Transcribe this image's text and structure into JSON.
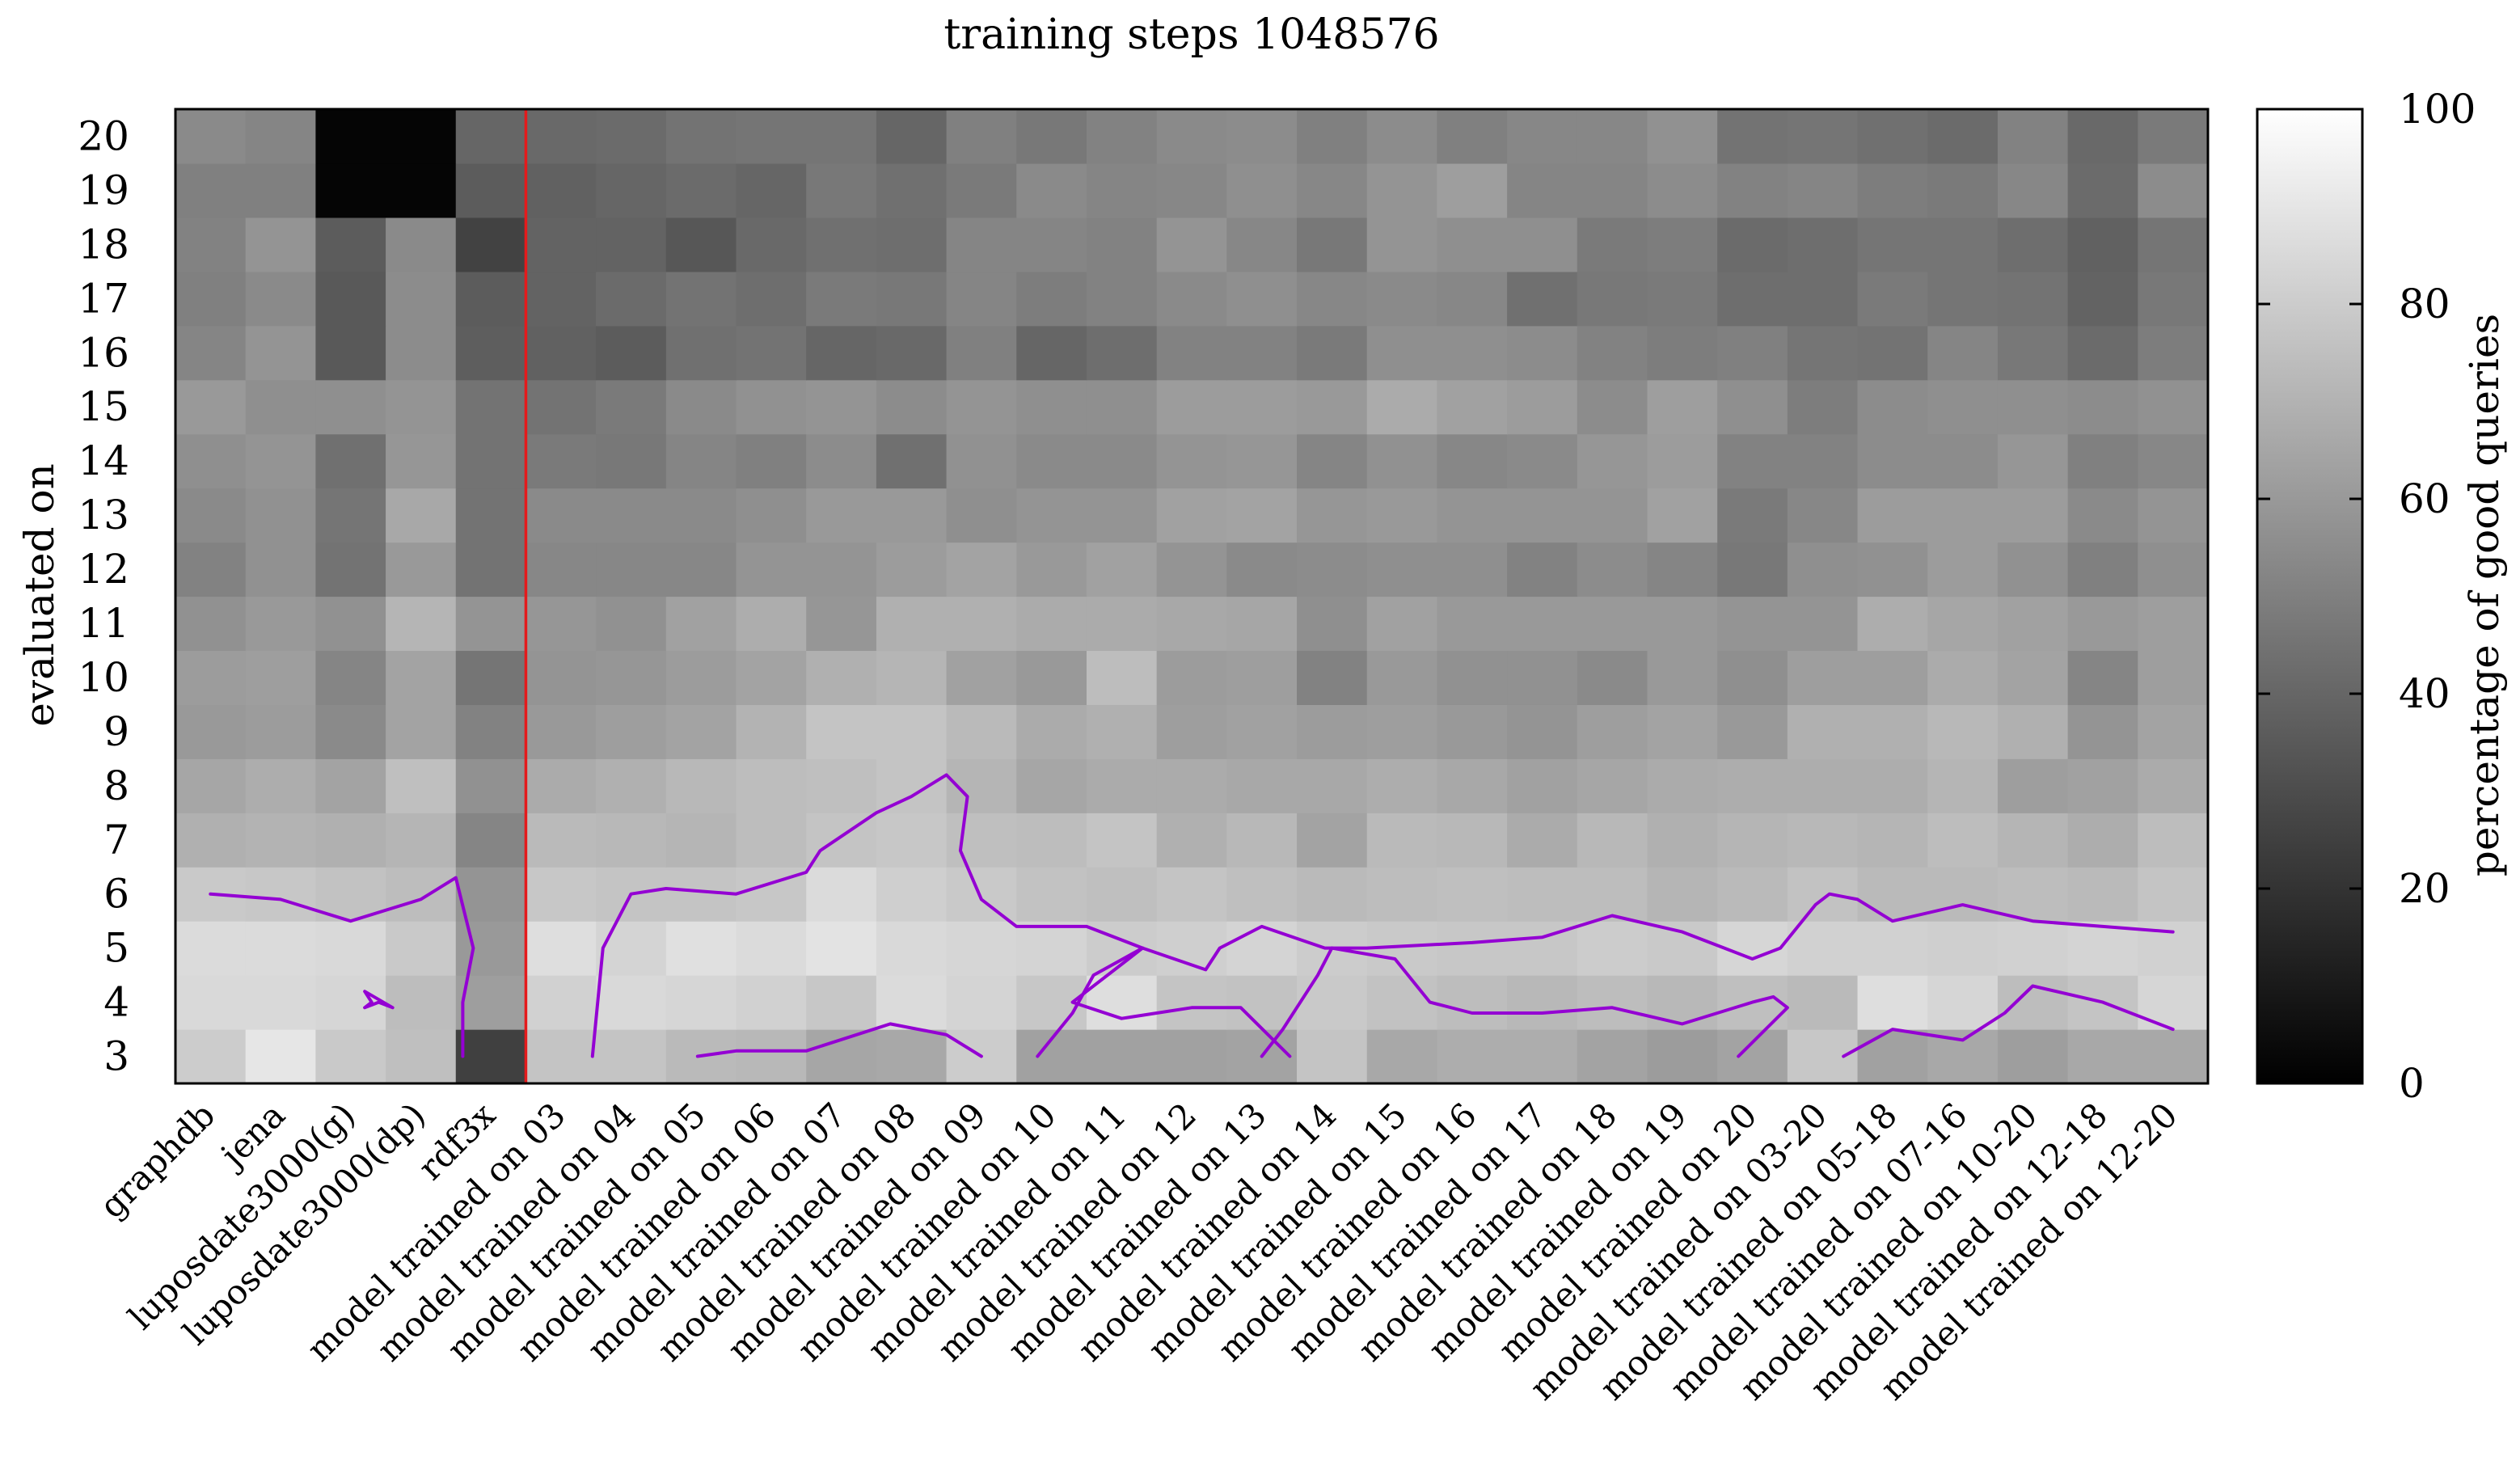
{
  "chart_data": {
    "type": "heatmap",
    "title": "training steps 1048576",
    "ylabel": "evaluated on",
    "xlabel": "",
    "colorbar": {
      "label": "percentage of good queries",
      "range": [
        0,
        100
      ],
      "ticks": [
        "0",
        "20",
        "40",
        "60",
        "80",
        "100"
      ],
      "palette": "grayscale black-to-white"
    },
    "y_categories": [
      "3",
      "4",
      "5",
      "6",
      "7",
      "8",
      "9",
      "10",
      "11",
      "12",
      "13",
      "14",
      "15",
      "16",
      "17",
      "18",
      "19",
      "20"
    ],
    "x_categories": [
      "graphdb",
      "jena",
      "luposdate3000(g)",
      "luposdate3000(dp)",
      "rdf3x",
      "model trained on 03",
      "model trained on 04",
      "model trained on 05",
      "model trained on 06",
      "model trained on 07",
      "model trained on 08",
      "model trained on 09",
      "model trained on 10",
      "model trained on 11",
      "model trained on 12",
      "model trained on 13",
      "model trained on 14",
      "model trained on 15",
      "model trained on 16",
      "model trained on 17",
      "model trained on 18",
      "model trained on 19",
      "model trained on 20",
      "model trained on 03-20",
      "model trained on 05-18",
      "model trained on 07-16",
      "model trained on 10-20",
      "model trained on 12-18",
      "model trained on 12-20"
    ],
    "values": [
      [
        80,
        90,
        79,
        75,
        25,
        77,
        77,
        73,
        72,
        65,
        66,
        80,
        63,
        63,
        63,
        64,
        77,
        66,
        68,
        68,
        64,
        61,
        64,
        78,
        63,
        66,
        62,
        66,
        66
      ],
      [
        85,
        85,
        84,
        74,
        62,
        82,
        85,
        84,
        82,
        78,
        86,
        83,
        78,
        87,
        77,
        76,
        79,
        76,
        74,
        72,
        74,
        72,
        75,
        73,
        87,
        84,
        74,
        77,
        84
      ],
      [
        86,
        86,
        85,
        79,
        60,
        87,
        83,
        88,
        86,
        89,
        85,
        84,
        83,
        80,
        81,
        83,
        80,
        79,
        78,
        78,
        80,
        79,
        84,
        82,
        82,
        81,
        82,
        83,
        82
      ],
      [
        79,
        78,
        76,
        74,
        58,
        78,
        77,
        77,
        78,
        86,
        81,
        79,
        76,
        75,
        77,
        75,
        73,
        74,
        75,
        74,
        74,
        71,
        73,
        76,
        73,
        73,
        74,
        73,
        77
      ],
      [
        69,
        70,
        69,
        71,
        52,
        73,
        72,
        71,
        74,
        77,
        78,
        75,
        74,
        77,
        69,
        72,
        64,
        73,
        72,
        67,
        72,
        69,
        71,
        72,
        71,
        74,
        71,
        68,
        74
      ],
      [
        65,
        68,
        64,
        75,
        57,
        67,
        69,
        72,
        74,
        75,
        77,
        71,
        65,
        67,
        67,
        66,
        66,
        68,
        66,
        63,
        65,
        67,
        68,
        68,
        68,
        71,
        62,
        63,
        67
      ],
      [
        60,
        61,
        54,
        64,
        51,
        60,
        62,
        64,
        70,
        77,
        77,
        73,
        67,
        69,
        62,
        63,
        61,
        62,
        60,
        58,
        62,
        64,
        60,
        69,
        69,
        72,
        69,
        58,
        64
      ],
      [
        61,
        62,
        52,
        64,
        46,
        58,
        59,
        61,
        64,
        69,
        71,
        63,
        60,
        74,
        61,
        62,
        51,
        60,
        57,
        57,
        54,
        60,
        56,
        62,
        62,
        67,
        64,
        52,
        62
      ],
      [
        57,
        60,
        57,
        71,
        58,
        59,
        57,
        63,
        68,
        59,
        69,
        69,
        67,
        67,
        66,
        65,
        56,
        63,
        60,
        60,
        60,
        60,
        58,
        58,
        68,
        65,
        63,
        60,
        62
      ],
      [
        51,
        57,
        45,
        60,
        45,
        53,
        53,
        53,
        58,
        58,
        61,
        64,
        60,
        63,
        58,
        54,
        55,
        56,
        56,
        51,
        55,
        52,
        47,
        56,
        57,
        61,
        57,
        50,
        56
      ],
      [
        54,
        57,
        46,
        66,
        45,
        54,
        54,
        54,
        56,
        60,
        60,
        56,
        58,
        58,
        63,
        64,
        59,
        60,
        58,
        58,
        58,
        63,
        48,
        53,
        61,
        61,
        61,
        54,
        58
      ],
      [
        56,
        58,
        44,
        59,
        45,
        48,
        47,
        52,
        50,
        55,
        44,
        57,
        54,
        54,
        58,
        59,
        52,
        57,
        53,
        54,
        59,
        61,
        51,
        51,
        55,
        55,
        59,
        50,
        53
      ],
      [
        60,
        56,
        56,
        58,
        45,
        45,
        48,
        54,
        57,
        58,
        55,
        58,
        56,
        56,
        61,
        61,
        60,
        67,
        63,
        61,
        55,
        62,
        56,
        49,
        55,
        56,
        56,
        55,
        57
      ],
      [
        52,
        58,
        35,
        55,
        37,
        38,
        36,
        44,
        45,
        40,
        41,
        50,
        40,
        43,
        51,
        51,
        48,
        56,
        56,
        55,
        51,
        49,
        50,
        46,
        45,
        52,
        47,
        42,
        49
      ],
      [
        50,
        54,
        35,
        55,
        36,
        39,
        42,
        45,
        43,
        48,
        47,
        52,
        49,
        51,
        54,
        56,
        53,
        54,
        53,
        44,
        47,
        48,
        43,
        43,
        48,
        46,
        45,
        39,
        47
      ],
      [
        51,
        58,
        36,
        54,
        26,
        39,
        39,
        34,
        41,
        44,
        43,
        52,
        52,
        51,
        58,
        53,
        47,
        58,
        56,
        56,
        48,
        49,
        42,
        43,
        46,
        46,
        43,
        38,
        46
      ],
      [
        50,
        50,
        2,
        2,
        36,
        38,
        40,
        42,
        40,
        47,
        44,
        48,
        54,
        52,
        53,
        56,
        53,
        58,
        62,
        52,
        52,
        55,
        51,
        52,
        49,
        48,
        53,
        42,
        55
      ],
      [
        54,
        52,
        2,
        2,
        40,
        41,
        42,
        45,
        46,
        46,
        40,
        50,
        47,
        51,
        54,
        55,
        50,
        55,
        50,
        53,
        53,
        57,
        45,
        46,
        44,
        42,
        51,
        41,
        48
      ]
    ],
    "highlight_line": {
      "color": "#e41a1c",
      "between_columns": [
        "rdf3x",
        "model trained on 03"
      ]
    },
    "contour_color": "#9400d3",
    "contour_lines": [
      [
        [
          0,
          6.0
        ],
        [
          1,
          5.9
        ],
        [
          2,
          5.5
        ],
        [
          3,
          5.9
        ],
        [
          3.5,
          6.3
        ],
        [
          3.75,
          5.0
        ],
        [
          3.6,
          4.0
        ],
        [
          3.6,
          3.0
        ]
      ],
      [
        [
          2.3,
          4.0
        ],
        [
          2.2,
          3.9
        ],
        [
          2.4,
          4.0
        ],
        [
          2.6,
          3.9
        ],
        [
          2.2,
          4.2
        ],
        [
          2.3,
          4.0
        ]
      ],
      [
        [
          5.45,
          3.0
        ],
        [
          5.6,
          5.0
        ],
        [
          6.0,
          6.0
        ],
        [
          6.5,
          6.1
        ],
        [
          7.5,
          6.0
        ],
        [
          8.5,
          6.4
        ],
        [
          8.7,
          6.8
        ],
        [
          9.5,
          7.5
        ],
        [
          10.0,
          7.8
        ],
        [
          10.5,
          8.2
        ],
        [
          10.8,
          7.8
        ],
        [
          10.7,
          6.8
        ],
        [
          11.0,
          5.9
        ],
        [
          11.5,
          5.4
        ],
        [
          12.0,
          5.4
        ],
        [
          12.5,
          5.4
        ],
        [
          13.3,
          5.0
        ]
      ],
      [
        [
          13.3,
          5.0
        ],
        [
          12.3,
          4.0
        ],
        [
          13.0,
          3.7
        ],
        [
          14.0,
          3.9
        ],
        [
          14.7,
          3.9
        ],
        [
          15.4,
          3.0
        ]
      ],
      [
        [
          13.3,
          5.0
        ],
        [
          12.6,
          4.5
        ],
        [
          12.3,
          3.8
        ],
        [
          11.8,
          3.0
        ]
      ],
      [
        [
          13.3,
          5.0
        ],
        [
          14.2,
          4.6
        ],
        [
          14.4,
          5.0
        ],
        [
          15.0,
          5.4
        ],
        [
          15.9,
          5.0
        ],
        [
          16.5,
          5.0
        ],
        [
          18.0,
          5.1
        ],
        [
          19.0,
          5.2
        ],
        [
          20.0,
          5.6
        ],
        [
          21.0,
          5.3
        ],
        [
          21.6,
          5.0
        ],
        [
          22.0,
          4.8
        ],
        [
          22.4,
          5.0
        ],
        [
          22.9,
          5.8
        ],
        [
          23.1,
          6.0
        ],
        [
          23.5,
          5.9
        ],
        [
          24.0,
          5.5
        ],
        [
          25.0,
          5.8
        ],
        [
          26.0,
          5.5
        ],
        [
          27.0,
          5.4
        ],
        [
          28.0,
          5.3
        ]
      ],
      [
        [
          16.0,
          5.0
        ],
        [
          16.9,
          4.8
        ],
        [
          17.4,
          4.0
        ],
        [
          18.0,
          3.8
        ],
        [
          19.0,
          3.8
        ],
        [
          20.0,
          3.9
        ],
        [
          21.0,
          3.6
        ],
        [
          22.0,
          4.0
        ],
        [
          22.3,
          4.1
        ],
        [
          22.5,
          3.9
        ],
        [
          21.8,
          3.0
        ]
      ],
      [
        [
          16.0,
          5.0
        ],
        [
          15.8,
          4.5
        ],
        [
          15.3,
          3.5
        ],
        [
          15.0,
          3.0
        ]
      ],
      [
        [
          23.3,
          3.0
        ],
        [
          24.0,
          3.5
        ],
        [
          25.0,
          3.3
        ],
        [
          25.6,
          3.8
        ],
        [
          26.0,
          4.3
        ],
        [
          27.0,
          4.0
        ],
        [
          28.0,
          3.5
        ]
      ],
      [
        [
          6.95,
          3.0
        ],
        [
          7.5,
          3.1
        ],
        [
          8.5,
          3.1
        ],
        [
          9.7,
          3.6
        ],
        [
          10.5,
          3.4
        ],
        [
          11.0,
          3.0
        ]
      ]
    ]
  }
}
